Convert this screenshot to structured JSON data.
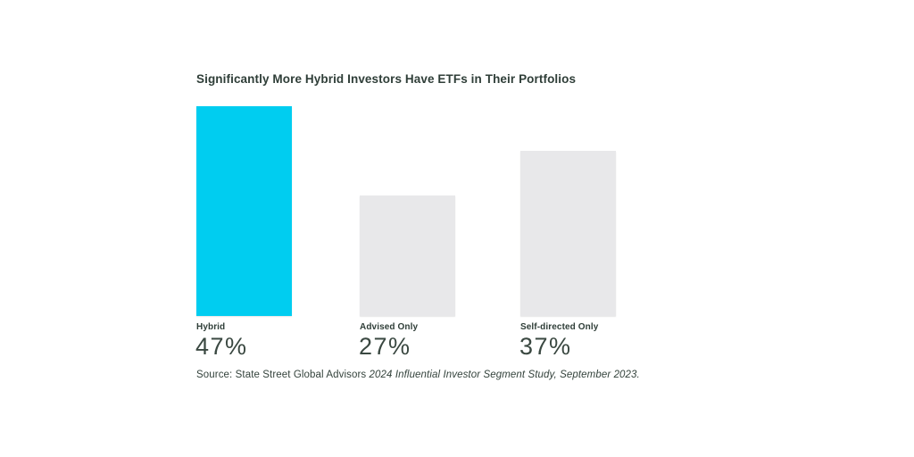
{
  "title": "Significantly More Hybrid Investors Have ETFs in Their Portfolios",
  "chart_data": {
    "type": "bar",
    "categories": [
      "Hybrid",
      "Advised Only",
      "Self-directed Only"
    ],
    "values": [
      47,
      27,
      37
    ],
    "value_labels": [
      "47%",
      "27%",
      "37%"
    ],
    "title": "Significantly More Hybrid Investors Have ETFs in Their Portfolios",
    "xlabel": "",
    "ylabel": "",
    "ylim": [
      0,
      50
    ],
    "grid": false,
    "legend": "none",
    "bar_colors": [
      "#00CDF0",
      "#E8E8EA",
      "#E8E8EA"
    ],
    "accent_color": "#00CDF0",
    "neutral_color": "#E8E8EA",
    "text_color": "#2F3E38"
  },
  "source": {
    "prefix": "Source: State Street Global Advisors ",
    "citation": "2024 Influential Investor Segment Study, September 2023."
  }
}
